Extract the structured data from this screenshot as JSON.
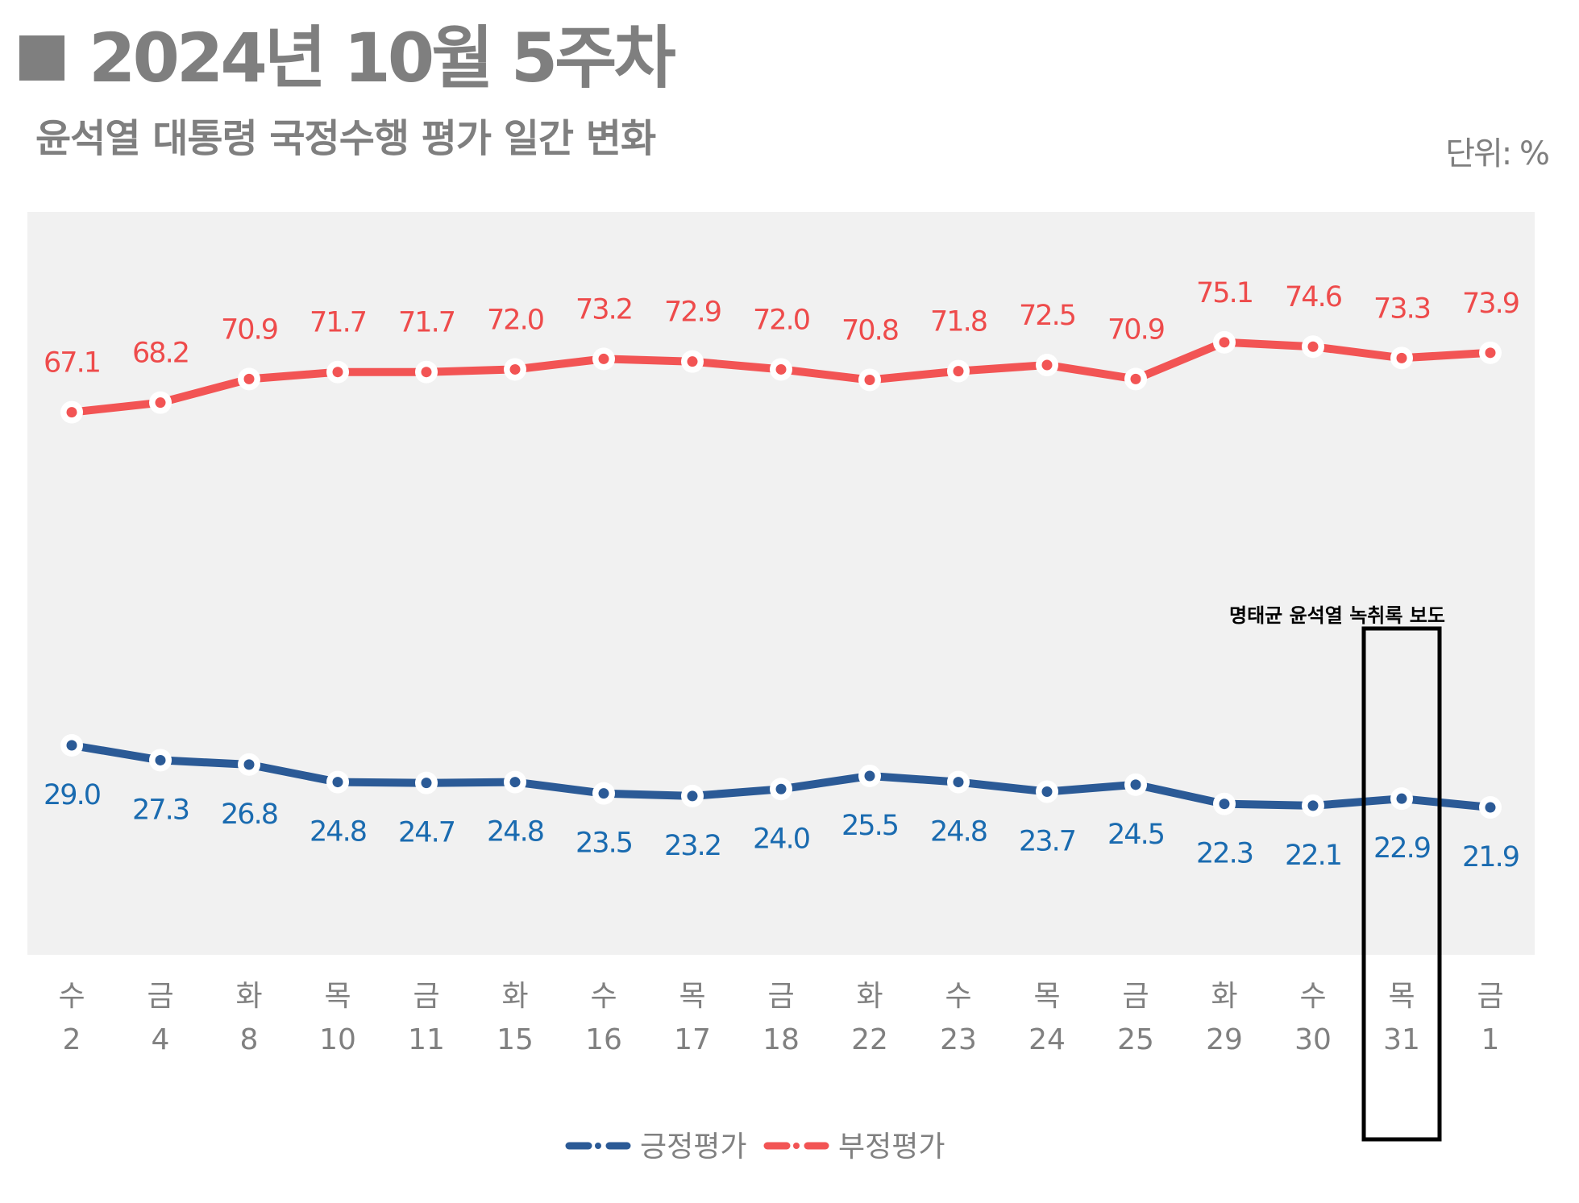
{
  "header": {
    "title": "2024년 10월 5주차",
    "subtitle": "윤석열 대통령 국정수행 평가 일간 변화",
    "unit": "단위: %"
  },
  "colors": {
    "positive_line": "#2b5a96",
    "positive_text": "#1a6bb0",
    "negative_line": "#f25454",
    "negative_text": "#ee4b4b",
    "plot_bg": "#f1f1f1",
    "axis_text": "#808080"
  },
  "chart_data": {
    "type": "line",
    "title": "윤석열 대통령 국정수행 평가 일간 변화",
    "xlabel": "",
    "ylabel": "",
    "unit": "%",
    "grid": false,
    "legend_position": "bottom-center",
    "x_weekdays": [
      "수",
      "금",
      "화",
      "목",
      "금",
      "화",
      "수",
      "목",
      "금",
      "화",
      "수",
      "목",
      "금",
      "화",
      "수",
      "목",
      "금"
    ],
    "x_days": [
      "2",
      "4",
      "8",
      "10",
      "11",
      "15",
      "16",
      "17",
      "18",
      "22",
      "23",
      "24",
      "25",
      "29",
      "30",
      "31",
      "1"
    ],
    "series": [
      {
        "name": "긍정평가",
        "key": "positive",
        "values": [
          29.0,
          27.3,
          26.8,
          24.8,
          24.7,
          24.8,
          23.5,
          23.2,
          24.0,
          25.5,
          24.8,
          23.7,
          24.5,
          22.3,
          22.1,
          22.9,
          21.9
        ]
      },
      {
        "name": "부정평가",
        "key": "negative",
        "values": [
          67.1,
          68.2,
          70.9,
          71.7,
          71.7,
          72.0,
          73.2,
          72.9,
          72.0,
          70.8,
          71.8,
          72.5,
          70.9,
          75.1,
          74.6,
          73.3,
          73.9
        ]
      }
    ],
    "annotation": {
      "text": "명태균 윤석열 녹취록 보도",
      "highlight_index": 15,
      "highlight_label": "목 31"
    }
  }
}
